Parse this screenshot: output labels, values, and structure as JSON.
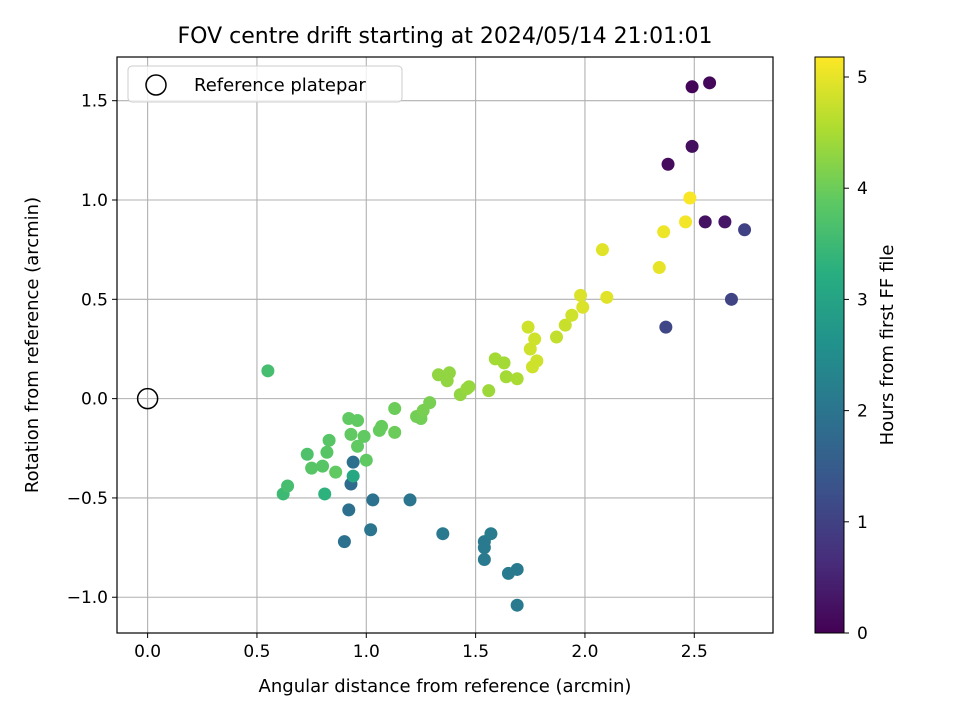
{
  "chart_data": {
    "type": "scatter",
    "title": "FOV centre drift starting at 2024/05/14 21:01:01",
    "xlabel": "Angular distance from reference (arcmin)",
    "ylabel": "Rotation from reference (arcmin)",
    "xlim": [
      -0.14,
      2.86
    ],
    "ylim": [
      -1.18,
      1.72
    ],
    "xticks": [
      0.0,
      0.5,
      1.0,
      1.5,
      2.0,
      2.5
    ],
    "xtick_labels": [
      "0.0",
      "0.5",
      "1.0",
      "1.5",
      "2.0",
      "2.5"
    ],
    "yticks": [
      -1.0,
      -0.5,
      0.0,
      0.5,
      1.0,
      1.5
    ],
    "ytick_labels": [
      "−1.0",
      "−0.5",
      "0.0",
      "0.5",
      "1.0",
      "1.5"
    ],
    "grid": true,
    "legend": {
      "position": "top-left",
      "entries": [
        {
          "label": "Reference platepar",
          "marker": "open-circle",
          "color": "#000000"
        }
      ]
    },
    "reference_point": {
      "x": 0.0,
      "y": 0.0
    },
    "colorbar": {
      "label": "Hours from first FF file",
      "colormap": "viridis",
      "range": [
        0,
        5.18
      ],
      "ticks": [
        0,
        1,
        2,
        3,
        4,
        5
      ],
      "tick_labels": [
        "0",
        "1",
        "2",
        "3",
        "4",
        "5"
      ]
    },
    "points": [
      {
        "x": 2.49,
        "y": 1.57,
        "c": 0.05
      },
      {
        "x": 2.57,
        "y": 1.59,
        "c": 0.1
      },
      {
        "x": 2.38,
        "y": 1.18,
        "c": 0.15
      },
      {
        "x": 2.49,
        "y": 1.27,
        "c": 0.2
      },
      {
        "x": 2.55,
        "y": 0.89,
        "c": 0.25
      },
      {
        "x": 2.64,
        "y": 0.89,
        "c": 0.3
      },
      {
        "x": 2.73,
        "y": 0.85,
        "c": 1.0
      },
      {
        "x": 2.67,
        "y": 0.5,
        "c": 1.05
      },
      {
        "x": 2.37,
        "y": 0.36,
        "c": 1.1
      },
      {
        "x": 0.93,
        "y": -0.43,
        "c": 1.8
      },
      {
        "x": 0.94,
        "y": -0.32,
        "c": 1.9
      },
      {
        "x": 0.92,
        "y": -0.56,
        "c": 1.9
      },
      {
        "x": 1.03,
        "y": -0.51,
        "c": 1.95
      },
      {
        "x": 1.2,
        "y": -0.51,
        "c": 2.0
      },
      {
        "x": 0.9,
        "y": -0.72,
        "c": 1.95
      },
      {
        "x": 1.02,
        "y": -0.66,
        "c": 2.0
      },
      {
        "x": 1.35,
        "y": -0.68,
        "c": 2.1
      },
      {
        "x": 1.54,
        "y": -0.72,
        "c": 2.1
      },
      {
        "x": 1.54,
        "y": -0.75,
        "c": 2.1
      },
      {
        "x": 1.54,
        "y": -0.81,
        "c": 2.1
      },
      {
        "x": 1.57,
        "y": -0.68,
        "c": 2.15
      },
      {
        "x": 1.65,
        "y": -0.88,
        "c": 2.1
      },
      {
        "x": 1.69,
        "y": -0.86,
        "c": 2.1
      },
      {
        "x": 1.69,
        "y": -1.04,
        "c": 2.1
      },
      {
        "x": 0.94,
        "y": -0.39,
        "c": 3.1
      },
      {
        "x": 0.81,
        "y": -0.48,
        "c": 3.3
      },
      {
        "x": 0.55,
        "y": 0.14,
        "c": 3.6
      },
      {
        "x": 0.62,
        "y": -0.48,
        "c": 3.5
      },
      {
        "x": 0.64,
        "y": -0.44,
        "c": 3.6
      },
      {
        "x": 0.73,
        "y": -0.28,
        "c": 3.7
      },
      {
        "x": 0.75,
        "y": -0.35,
        "c": 3.8
      },
      {
        "x": 0.8,
        "y": -0.34,
        "c": 3.8
      },
      {
        "x": 0.82,
        "y": -0.27,
        "c": 3.8
      },
      {
        "x": 0.83,
        "y": -0.21,
        "c": 3.8
      },
      {
        "x": 0.86,
        "y": -0.37,
        "c": 3.9
      },
      {
        "x": 0.92,
        "y": -0.1,
        "c": 3.9
      },
      {
        "x": 0.93,
        "y": -0.18,
        "c": 3.9
      },
      {
        "x": 0.96,
        "y": -0.11,
        "c": 3.9
      },
      {
        "x": 0.96,
        "y": -0.24,
        "c": 3.9
      },
      {
        "x": 0.99,
        "y": -0.19,
        "c": 3.9
      },
      {
        "x": 1.0,
        "y": -0.31,
        "c": 3.9
      },
      {
        "x": 1.06,
        "y": -0.16,
        "c": 3.95
      },
      {
        "x": 1.07,
        "y": -0.14,
        "c": 3.95
      },
      {
        "x": 1.13,
        "y": -0.05,
        "c": 4.0
      },
      {
        "x": 1.13,
        "y": -0.17,
        "c": 4.0
      },
      {
        "x": 1.23,
        "y": -0.09,
        "c": 4.05
      },
      {
        "x": 1.25,
        "y": -0.1,
        "c": 4.05
      },
      {
        "x": 1.26,
        "y": -0.06,
        "c": 4.1
      },
      {
        "x": 1.29,
        "y": -0.02,
        "c": 4.1
      },
      {
        "x": 1.33,
        "y": 0.12,
        "c": 4.3
      },
      {
        "x": 1.37,
        "y": 0.09,
        "c": 4.3
      },
      {
        "x": 1.38,
        "y": 0.13,
        "c": 4.3
      },
      {
        "x": 1.43,
        "y": 0.02,
        "c": 4.3
      },
      {
        "x": 1.46,
        "y": 0.05,
        "c": 4.35
      },
      {
        "x": 1.47,
        "y": 0.06,
        "c": 4.35
      },
      {
        "x": 1.56,
        "y": 0.04,
        "c": 4.4
      },
      {
        "x": 1.59,
        "y": 0.2,
        "c": 4.45
      },
      {
        "x": 1.63,
        "y": 0.18,
        "c": 4.45
      },
      {
        "x": 1.64,
        "y": 0.11,
        "c": 4.45
      },
      {
        "x": 1.69,
        "y": 0.1,
        "c": 4.5
      },
      {
        "x": 1.74,
        "y": 0.36,
        "c": 4.8
      },
      {
        "x": 1.75,
        "y": 0.25,
        "c": 4.8
      },
      {
        "x": 1.76,
        "y": 0.16,
        "c": 4.8
      },
      {
        "x": 1.77,
        "y": 0.3,
        "c": 4.8
      },
      {
        "x": 1.78,
        "y": 0.19,
        "c": 4.8
      },
      {
        "x": 1.87,
        "y": 0.31,
        "c": 4.7
      },
      {
        "x": 1.91,
        "y": 0.37,
        "c": 4.75
      },
      {
        "x": 1.94,
        "y": 0.42,
        "c": 4.8
      },
      {
        "x": 1.98,
        "y": 0.52,
        "c": 4.9
      },
      {
        "x": 1.99,
        "y": 0.46,
        "c": 4.9
      },
      {
        "x": 2.08,
        "y": 0.75,
        "c": 4.95
      },
      {
        "x": 2.1,
        "y": 0.51,
        "c": 4.95
      },
      {
        "x": 2.34,
        "y": 0.66,
        "c": 5.0
      },
      {
        "x": 2.36,
        "y": 0.84,
        "c": 5.05
      },
      {
        "x": 2.46,
        "y": 0.89,
        "c": 5.1
      },
      {
        "x": 2.48,
        "y": 1.01,
        "c": 5.15
      }
    ]
  }
}
